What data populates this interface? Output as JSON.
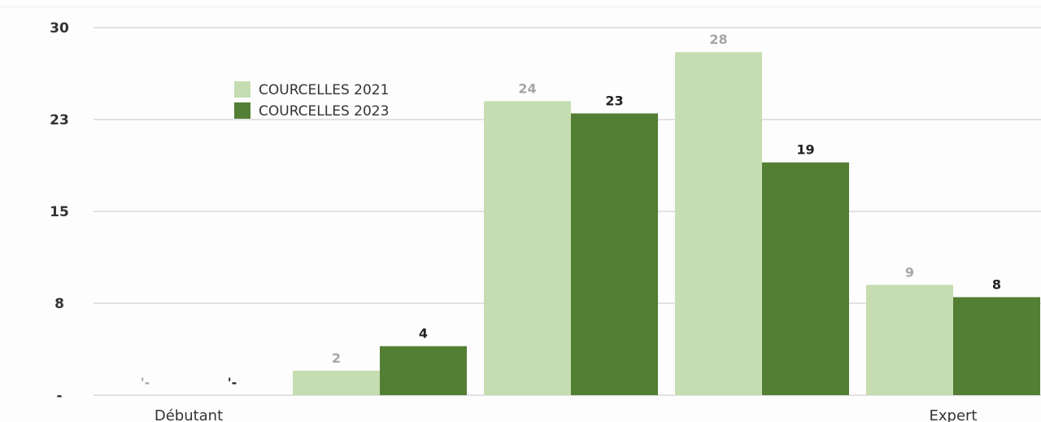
{
  "chart_data": {
    "type": "bar",
    "categories": [
      "Débutant",
      "",
      "",
      "",
      "Expert"
    ],
    "series": [
      {
        "name": "COURCELLES 2021",
        "color": "#c5ddb1",
        "label_color": "#a6a6a6",
        "values": [
          0,
          2,
          24,
          28,
          9
        ],
        "labels": [
          "'-",
          "2",
          "24",
          "28",
          "9"
        ]
      },
      {
        "name": "COURCELLES 2023",
        "color": "#537f35",
        "label_color": "#222222",
        "values": [
          0,
          4,
          23,
          19,
          8
        ],
        "labels": [
          "'-",
          "4",
          "23",
          "19",
          "8"
        ]
      }
    ],
    "yticks": [
      {
        "value": 0,
        "label": "-"
      },
      {
        "value": 7.5,
        "label": "8"
      },
      {
        "value": 15,
        "label": "15"
      },
      {
        "value": 22.5,
        "label": "23"
      },
      {
        "value": 30,
        "label": "30"
      }
    ],
    "ylim": [
      0,
      30
    ],
    "grid": true,
    "legend": "top-left"
  }
}
